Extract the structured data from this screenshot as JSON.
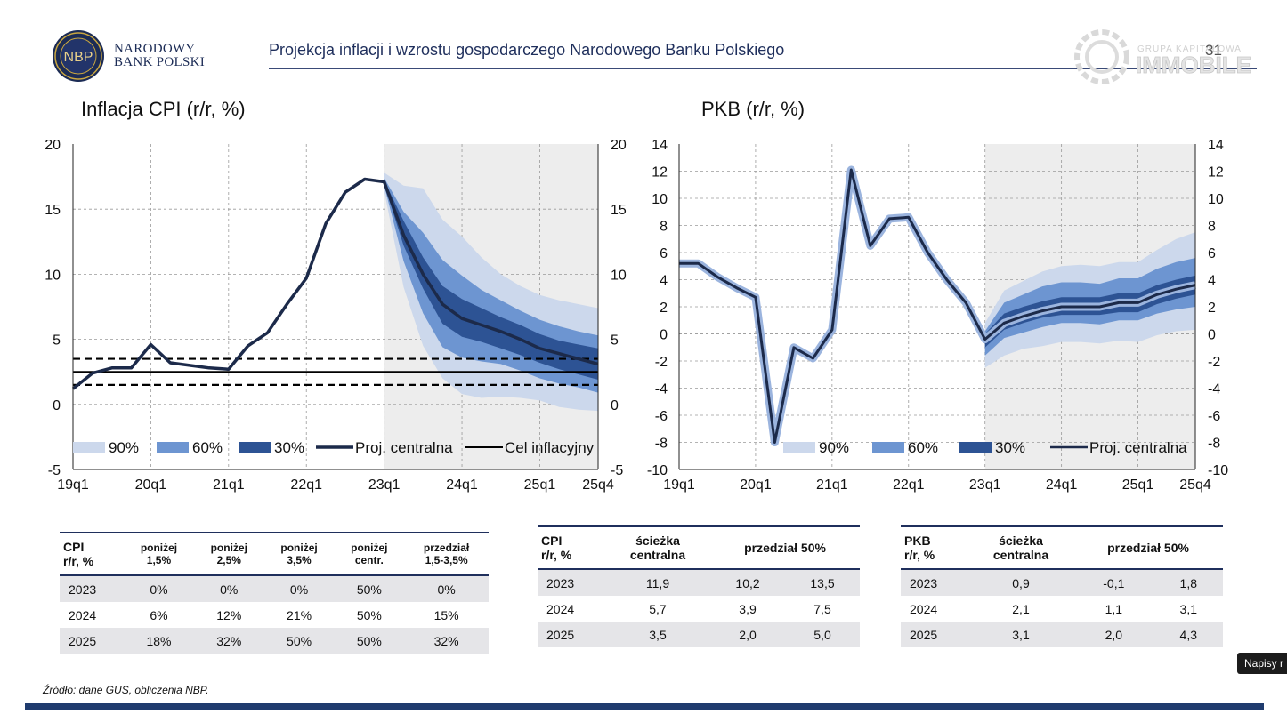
{
  "header": {
    "logo_text": "NBP",
    "bank_name_line1": "NARODOWY",
    "bank_name_line2": "BANK POLSKI",
    "title": "Projekcja inflacji i wzrostu gospodarczego Narodowego Banku Polskiego",
    "slide_number": "31",
    "watermark_line1": "GRUPA KAPITAŁOWA",
    "watermark_line2": "IMMOBILE"
  },
  "chart_data": [
    {
      "type": "area",
      "title": "Inflacja CPI (r/r, %)",
      "ylim": [
        -5,
        20
      ],
      "yticks": [
        -5,
        0,
        5,
        10,
        15,
        20
      ],
      "xtick_labels": [
        "19q1",
        "20q1",
        "21q1",
        "22q1",
        "23q1",
        "24q1",
        "25q1",
        "25q4"
      ],
      "x_range": [
        "2019q1",
        "2025q4"
      ],
      "projection_start": "2023q1",
      "grid": true,
      "legend_position": "bottom",
      "legend": [
        "90%",
        "60%",
        "30%",
        "Proj. centralna",
        "Cel inflacyjny"
      ],
      "series": [
        {
          "name": "Proj. centralna",
          "x": [
            "2019q1",
            "2019q2",
            "2019q3",
            "2019q4",
            "2020q1",
            "2020q2",
            "2020q3",
            "2020q4",
            "2021q1",
            "2021q2",
            "2021q3",
            "2021q4",
            "2022q1",
            "2022q2",
            "2022q3",
            "2022q4",
            "2023q1",
            "2023q2",
            "2023q3",
            "2023q4",
            "2024q1",
            "2024q2",
            "2024q3",
            "2024q4",
            "2025q1",
            "2025q2",
            "2025q3",
            "2025q4"
          ],
          "values": [
            1.2,
            2.4,
            2.8,
            2.8,
            4.6,
            3.2,
            3.0,
            2.8,
            2.7,
            4.5,
            5.5,
            7.7,
            9.7,
            13.9,
            16.3,
            17.3,
            17.1,
            13.0,
            10.0,
            7.7,
            6.6,
            6.1,
            5.6,
            5.0,
            4.3,
            3.9,
            3.5,
            3.1
          ]
        },
        {
          "name": "Cel inflacyjny",
          "values": [
            2.5
          ]
        },
        {
          "name": "Cel inflacyjny (granice)",
          "values": [
            1.5,
            3.5
          ]
        }
      ],
      "bands": {
        "x": [
          "2023q1",
          "2023q2",
          "2023q3",
          "2023q4",
          "2024q1",
          "2024q2",
          "2024q3",
          "2024q4",
          "2025q1",
          "2025q2",
          "2025q3",
          "2025q4"
        ],
        "90%": {
          "lo": [
            16.4,
            9.0,
            4.5,
            2.0,
            0.8,
            0.5,
            0.6,
            0.5,
            0.3,
            -0.2,
            -0.4,
            -0.5
          ],
          "hi": [
            17.8,
            16.8,
            16.6,
            14.2,
            12.9,
            11.3,
            10.0,
            9.1,
            8.4,
            8.0,
            7.7,
            7.4
          ]
        },
        "60%": {
          "lo": [
            16.8,
            11.0,
            7.0,
            4.4,
            3.6,
            3.3,
            3.1,
            2.6,
            2.0,
            1.6,
            1.3,
            0.9
          ],
          "hi": [
            17.4,
            14.8,
            13.2,
            11.1,
            9.9,
            8.8,
            8.0,
            7.2,
            6.5,
            6.0,
            5.6,
            5.3
          ]
        },
        "30%": {
          "lo": [
            16.9,
            12.2,
            8.9,
            6.2,
            5.2,
            4.8,
            4.3,
            3.8,
            3.2,
            2.7,
            2.3,
            1.9
          ],
          "hi": [
            17.2,
            14.1,
            11.3,
            9.1,
            8.1,
            7.4,
            6.7,
            6.1,
            5.4,
            4.9,
            4.6,
            4.3
          ]
        }
      }
    },
    {
      "type": "area",
      "title": "PKB (r/r, %)",
      "ylim": [
        -10,
        14
      ],
      "yticks": [
        -10,
        -8,
        -6,
        -4,
        -2,
        0,
        2,
        4,
        6,
        8,
        10,
        12,
        14
      ],
      "xtick_labels": [
        "19q1",
        "20q1",
        "21q1",
        "22q1",
        "23q1",
        "24q1",
        "25q1",
        "25q4"
      ],
      "x_range": [
        "2019q1",
        "2025q4"
      ],
      "projection_start": "2023q1",
      "grid": true,
      "legend_position": "bottom",
      "legend": [
        "90%",
        "60%",
        "30%",
        "Proj. centralna"
      ],
      "series": [
        {
          "name": "Proj. centralna",
          "x": [
            "2019q1",
            "2019q2",
            "2019q3",
            "2019q4",
            "2020q1",
            "2020q2",
            "2020q3",
            "2020q4",
            "2021q1",
            "2021q2",
            "2021q3",
            "2021q4",
            "2022q1",
            "2022q2",
            "2022q3",
            "2022q4",
            "2023q1",
            "2023q2",
            "2023q3",
            "2023q4",
            "2024q1",
            "2024q2",
            "2024q3",
            "2024q4",
            "2025q1",
            "2025q2",
            "2025q3",
            "2025q4"
          ],
          "values": [
            5.2,
            5.2,
            4.2,
            3.4,
            2.7,
            -8.0,
            -1.0,
            -1.8,
            0.3,
            12.1,
            6.5,
            8.5,
            8.6,
            6.0,
            4.0,
            2.3,
            -0.4,
            0.8,
            1.3,
            1.7,
            2.0,
            2.0,
            2.0,
            2.3,
            2.3,
            2.9,
            3.3,
            3.6
          ]
        }
      ],
      "bands": {
        "x": [
          "2023q1",
          "2023q2",
          "2023q3",
          "2023q4",
          "2024q1",
          "2024q2",
          "2024q3",
          "2024q4",
          "2025q1",
          "2025q2",
          "2025q3",
          "2025q4"
        ],
        "90%": {
          "lo": [
            -2.5,
            -1.6,
            -1.1,
            -0.9,
            -0.6,
            -0.6,
            -0.7,
            -0.5,
            -0.6,
            -0.1,
            0.2,
            0.3
          ],
          "hi": [
            0.8,
            3.2,
            3.9,
            4.6,
            5.0,
            5.1,
            5.0,
            5.3,
            5.3,
            6.2,
            7.0,
            7.5
          ]
        },
        "60%": {
          "lo": [
            -1.6,
            -0.3,
            0.1,
            0.5,
            0.8,
            0.8,
            0.7,
            1.0,
            1.0,
            1.5,
            1.8,
            2.0
          ],
          "hi": [
            0.2,
            2.3,
            2.9,
            3.5,
            3.8,
            3.8,
            3.7,
            4.1,
            4.1,
            4.8,
            5.3,
            5.6
          ]
        },
        "30%": {
          "lo": [
            -1.0,
            0.3,
            0.8,
            1.2,
            1.4,
            1.4,
            1.4,
            1.6,
            1.6,
            2.2,
            2.6,
            2.9
          ],
          "hi": [
            0.0,
            1.5,
            2.0,
            2.4,
            2.7,
            2.7,
            2.7,
            3.0,
            3.0,
            3.6,
            4.0,
            4.3
          ]
        }
      }
    }
  ],
  "tables": {
    "cpi_prob": {
      "header": [
        "CPI\nr/r, %",
        "poniżej\n1,5%",
        "poniżej\n2,5%",
        "poniżej\n3,5%",
        "poniżej\ncentr.",
        "przedział\n1,5-3,5%"
      ],
      "rows": [
        [
          "2023",
          "0%",
          "0%",
          "0%",
          "50%",
          "0%"
        ],
        [
          "2024",
          "6%",
          "12%",
          "21%",
          "50%",
          "15%"
        ],
        [
          "2025",
          "18%",
          "32%",
          "50%",
          "50%",
          "32%"
        ]
      ]
    },
    "cpi_path": {
      "header": [
        "CPI\nr/r, %",
        "ścieżka\ncentralna",
        "przedział 50%"
      ],
      "rows": [
        [
          "2023",
          "11,9",
          "10,2",
          "13,5"
        ],
        [
          "2024",
          "5,7",
          "3,9",
          "7,5"
        ],
        [
          "2025",
          "3,5",
          "2,0",
          "5,0"
        ]
      ]
    },
    "gdp_path": {
      "header": [
        "PKB\nr/r, %",
        "ścieżka\ncentralna",
        "przedział 50%"
      ],
      "rows": [
        [
          "2023",
          "0,9",
          "-0,1",
          "1,8"
        ],
        [
          "2024",
          "2,1",
          "1,1",
          "3,1"
        ],
        [
          "2025",
          "3,1",
          "2,0",
          "4,3"
        ]
      ]
    }
  },
  "source": "Źródło: dane GUS, obliczenia NBP.",
  "caption_button": "Napisy r",
  "colors": {
    "band90": "#ccd8ec",
    "band60": "#6d95d1",
    "band30": "#2d5394",
    "central": "#1c2a4a",
    "projection_bg": "#ededed",
    "navy": "#1f2f5c"
  }
}
